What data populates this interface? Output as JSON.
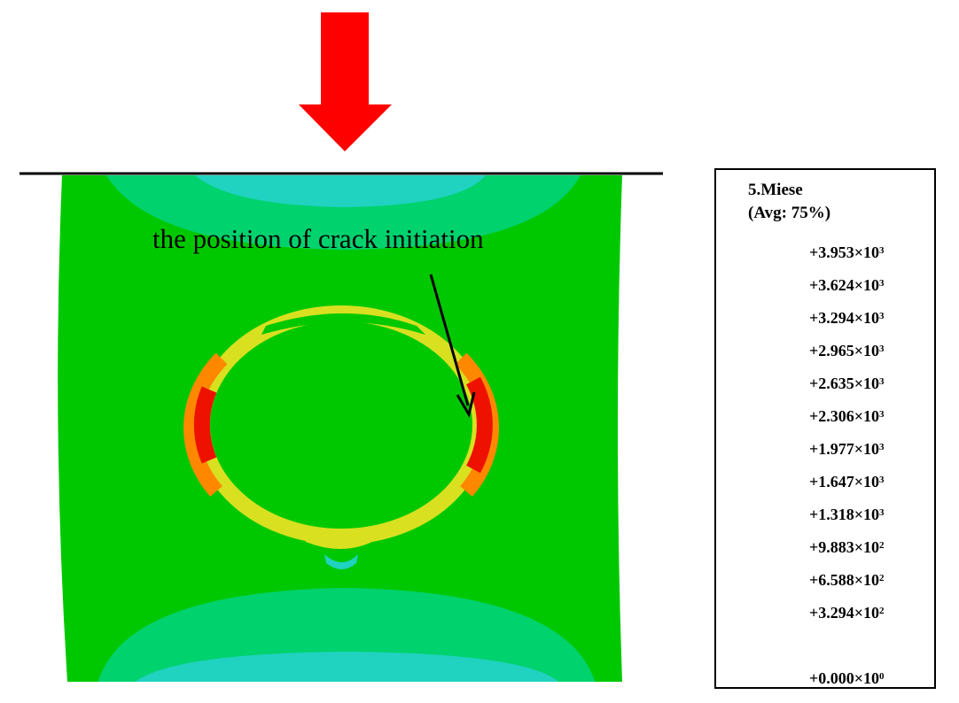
{
  "annotation": "the position of crack initiation",
  "legend": {
    "title_line1": "5.Miese",
    "title_line2": "(Avg: 75%)",
    "ticks": [
      {
        "mantissa": "+3.953",
        "exp": "3"
      },
      {
        "mantissa": "+3.624",
        "exp": "3"
      },
      {
        "mantissa": "+3.294",
        "exp": "3"
      },
      {
        "mantissa": "+2.965",
        "exp": "3"
      },
      {
        "mantissa": "+2.635",
        "exp": "3"
      },
      {
        "mantissa": "+2.306",
        "exp": "3"
      },
      {
        "mantissa": "+1.977",
        "exp": "3"
      },
      {
        "mantissa": "+1.647",
        "exp": "3"
      },
      {
        "mantissa": "+1.318",
        "exp": "3"
      },
      {
        "mantissa": "+9.883",
        "exp": "2"
      },
      {
        "mantissa": "+6.588",
        "exp": "2"
      },
      {
        "mantissa": "+3.294",
        "exp": "2"
      },
      {
        "mantissa": "+0.000",
        "exp": "0"
      }
    ],
    "times_sign": "×10",
    "band_colors": [
      "#ff5a05",
      "#ff6a05",
      "#ffaa00",
      "#e6ff00",
      "#00ee00",
      "#00dd00",
      "#00e000",
      "#00cc44",
      "#00f0a0",
      "#00ffe6",
      "#00b4ff",
      "#0055ff",
      "#0000ee"
    ]
  },
  "colors": {
    "load_arrow": "#ff0000",
    "body_green": "#00c800",
    "cyan_zone": "#20d2c0",
    "mid_zone": "#00d26e",
    "ring_red": "#ee1100",
    "ring_orange": "#ff8800",
    "ring_yellow": "#d8e020"
  }
}
